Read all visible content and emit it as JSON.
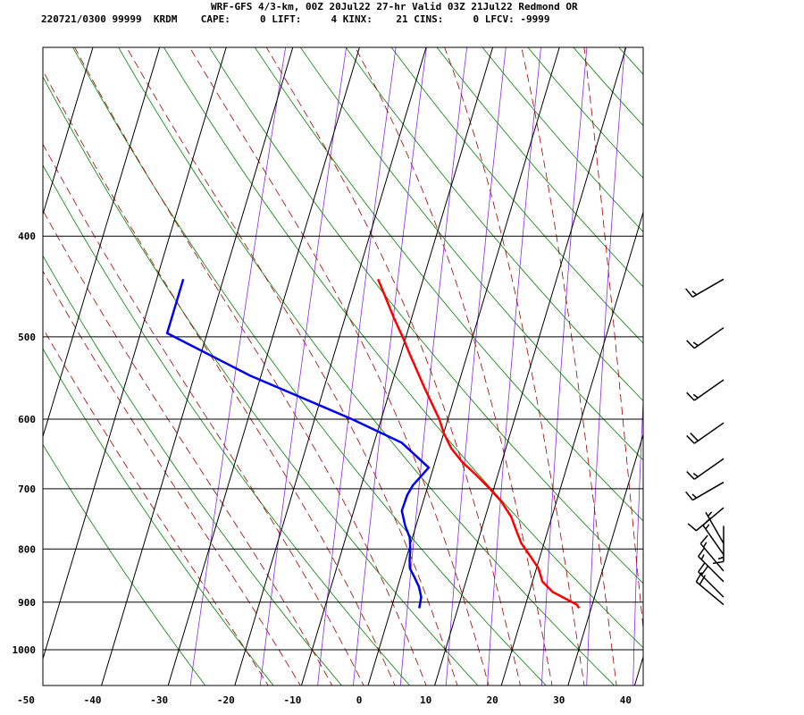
{
  "header": {
    "line1": "WRF-GFS 4/3-km, 00Z 20Jul22 27-hr Valid 03Z 21Jul22 Redmond OR",
    "line2": "220721/0300 99999  KRDM    CAPE:     0 LIFT:     4 KINX:    21 CINS:     0 LFCV: -9999"
  },
  "colors": {
    "temperature": "#ff0000",
    "dewpoint": "#0000ee",
    "isotherm": "#000000",
    "isobar": "#000000",
    "dry_adiabat": "#008000",
    "moist_adiabat": "#a00000",
    "mixing_ratio": "#8a2be2",
    "wind_barb": "#000000"
  },
  "chart_data": {
    "type": "line",
    "subtype": "skew-T log-P sounding",
    "title": "WRF-GFS 4/3-km, 00Z 20Jul22 27-hr Valid 03Z 21Jul22 Redmond OR",
    "xlabel": "",
    "ylabel": "",
    "x_ticks": [
      -50,
      -40,
      -30,
      -20,
      -10,
      0,
      10,
      20,
      30,
      40
    ],
    "y_ticks": [
      400,
      500,
      600,
      700,
      800,
      900,
      1000
    ],
    "x_range": [
      -50,
      40
    ],
    "y_range": [
      400,
      1050
    ],
    "y_scale": "log",
    "grid": true,
    "background_lines": [
      "isotherms",
      "isobars",
      "dry adiabats",
      "moist adiabats",
      "mixing ratio lines"
    ],
    "series": [
      {
        "key": "temperature",
        "points": [
          [
            912,
            28.2
          ],
          [
            905,
            27.7
          ],
          [
            880,
            23.5
          ],
          [
            860,
            21.5
          ],
          [
            835,
            20.3
          ],
          [
            810,
            18.3
          ],
          [
            790,
            16.6
          ],
          [
            770,
            15.4
          ],
          [
            745,
            13.9
          ],
          [
            720,
            11.7
          ],
          [
            700,
            9.4
          ],
          [
            680,
            6.9
          ],
          [
            660,
            4.1
          ],
          [
            640,
            1.8
          ],
          [
            620,
            0.1
          ],
          [
            600,
            -1.3
          ],
          [
            560,
            -4.9
          ],
          [
            520,
            -8.6
          ],
          [
            500,
            -10.5
          ],
          [
            480,
            -12.6
          ],
          [
            450,
            -15.7
          ],
          [
            440,
            -16.8
          ]
        ]
      },
      {
        "key": "dewpoint",
        "points": [
          [
            912,
            4.2
          ],
          [
            890,
            4.0
          ],
          [
            870,
            3.2
          ],
          [
            850,
            2.0
          ],
          [
            835,
            1.0
          ],
          [
            820,
            0.6
          ],
          [
            800,
            0.2
          ],
          [
            780,
            -0.4
          ],
          [
            760,
            -1.6
          ],
          [
            735,
            -2.8
          ],
          [
            710,
            -2.7
          ],
          [
            695,
            -2.3
          ],
          [
            668,
            -0.7
          ],
          [
            632,
            -5.9
          ],
          [
            600,
            -14.4
          ],
          [
            545,
            -31.6
          ],
          [
            496,
            -46.0
          ],
          [
            440,
            -46.0
          ]
        ]
      }
    ],
    "wind_barbs": [
      {
        "pressure": 440,
        "direction_deg": 240,
        "speed_kt": 15
      },
      {
        "pressure": 490,
        "direction_deg": 235,
        "speed_kt": 15
      },
      {
        "pressure": 550,
        "direction_deg": 235,
        "speed_kt": 15
      },
      {
        "pressure": 605,
        "direction_deg": 235,
        "speed_kt": 20
      },
      {
        "pressure": 655,
        "direction_deg": 235,
        "speed_kt": 15
      },
      {
        "pressure": 690,
        "direction_deg": 240,
        "speed_kt": 15
      },
      {
        "pressure": 730,
        "direction_deg": 230,
        "speed_kt": 10
      },
      {
        "pressure": 760,
        "direction_deg": 180,
        "speed_kt": 15
      },
      {
        "pressure": 790,
        "direction_deg": 330,
        "speed_kt": 5
      },
      {
        "pressure": 810,
        "direction_deg": 325,
        "speed_kt": 15
      },
      {
        "pressure": 840,
        "direction_deg": 320,
        "speed_kt": 15
      },
      {
        "pressure": 860,
        "direction_deg": 315,
        "speed_kt": 15
      },
      {
        "pressure": 890,
        "direction_deg": 315,
        "speed_kt": 20
      },
      {
        "pressure": 905,
        "direction_deg": 310,
        "speed_kt": 20
      }
    ]
  }
}
